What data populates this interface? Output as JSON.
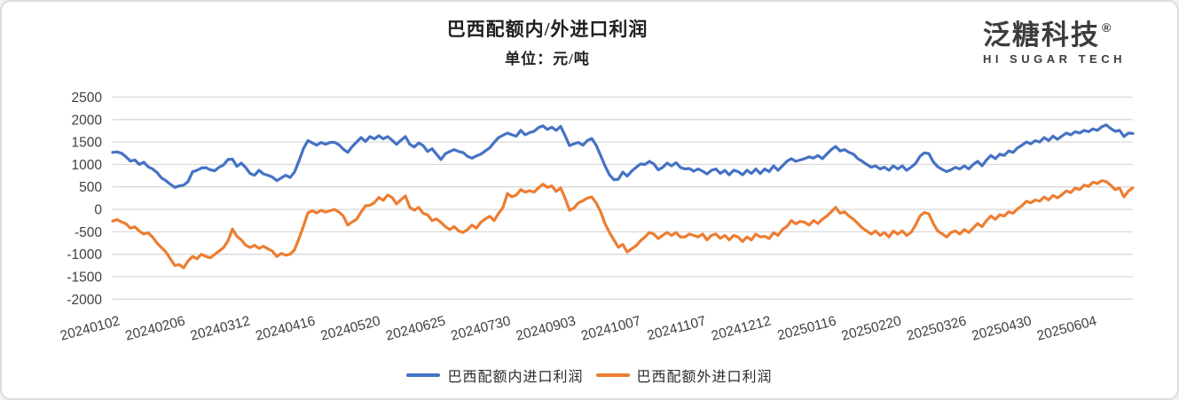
{
  "header": {
    "title": "巴西配额内/外进口利润",
    "subtitle": "单位：元/吨"
  },
  "logo": {
    "brand": "泛糖科技",
    "registered_mark": "®",
    "tagline": "HI SUGAR TECH"
  },
  "chart_data": {
    "type": "line",
    "title": "巴西配额内/外进口利润",
    "unit_label": "单位：元/吨",
    "grid": "horizontal",
    "legend_position": "bottom",
    "ylim": [
      -2000,
      2500
    ],
    "y_tick_step": 500,
    "y_tick_labels": [
      "2500",
      "2000",
      "1500",
      "1000",
      "500",
      "0",
      "-500",
      "-1000",
      "-1500",
      "-2000"
    ],
    "x_tick_labels": [
      "20240102",
      "20240206",
      "20240312",
      "20240416",
      "20240520",
      "20240625",
      "20240730",
      "20240903",
      "20241007",
      "20241107",
      "20241212",
      "20250116",
      "20250220",
      "20250326",
      "20250430",
      "20250604"
    ],
    "colors": {
      "gridline": "#D9D9D9",
      "axis_text": "#404040",
      "series_in_quota": "#4472C4",
      "series_out_quota": "#ED7D31"
    },
    "series": [
      {
        "name": "巴西配额内进口利润",
        "color": "#4472C4",
        "values": [
          1270,
          1280,
          1250,
          1170,
          1075,
          1100,
          1000,
          1050,
          950,
          900,
          820,
          700,
          640,
          560,
          490,
          520,
          540,
          620,
          835,
          870,
          920,
          930,
          880,
          860,
          940,
          990,
          1110,
          1120,
          960,
          1030,
          930,
          800,
          760,
          870,
          790,
          760,
          720,
          640,
          700,
          760,
          710,
          830,
          1080,
          1350,
          1530,
          1480,
          1430,
          1490,
          1450,
          1490,
          1495,
          1440,
          1340,
          1270,
          1400,
          1500,
          1600,
          1510,
          1620,
          1570,
          1640,
          1570,
          1620,
          1540,
          1450,
          1540,
          1620,
          1450,
          1390,
          1480,
          1420,
          1290,
          1350,
          1230,
          1110,
          1240,
          1290,
          1330,
          1290,
          1265,
          1180,
          1140,
          1190,
          1230,
          1300,
          1370,
          1490,
          1600,
          1650,
          1700,
          1660,
          1630,
          1760,
          1660,
          1710,
          1740,
          1820,
          1860,
          1780,
          1830,
          1760,
          1850,
          1640,
          1420,
          1460,
          1490,
          1430,
          1530,
          1580,
          1430,
          1200,
          970,
          770,
          660,
          670,
          830,
          740,
          850,
          935,
          1010,
          1000,
          1070,
          1010,
          880,
          935,
          1030,
          970,
          1040,
          935,
          900,
          910,
          850,
          900,
          850,
          790,
          870,
          900,
          800,
          870,
          770,
          870,
          840,
          770,
          870,
          800,
          900,
          800,
          900,
          840,
          970,
          870,
          970,
          1070,
          1130,
          1070,
          1100,
          1130,
          1170,
          1140,
          1200,
          1130,
          1230,
          1330,
          1400,
          1300,
          1330,
          1270,
          1230,
          1130,
          1070,
          1000,
          940,
          970,
          900,
          940,
          870,
          970,
          900,
          970,
          870,
          940,
          1020,
          1180,
          1260,
          1240,
          1060,
          950,
          890,
          840,
          880,
          935,
          900,
          970,
          900,
          1000,
          1070,
          970,
          1100,
          1200,
          1130,
          1230,
          1200,
          1300,
          1270,
          1370,
          1430,
          1500,
          1460,
          1530,
          1500,
          1600,
          1530,
          1630,
          1560,
          1630,
          1700,
          1660,
          1730,
          1700,
          1760,
          1730,
          1790,
          1760,
          1840,
          1880,
          1800,
          1740,
          1760,
          1620,
          1700,
          1690
        ]
      },
      {
        "name": "巴西配额外进口利润",
        "color": "#ED7D31",
        "values": [
          -260,
          -230,
          -280,
          -320,
          -420,
          -390,
          -480,
          -550,
          -520,
          -620,
          -750,
          -850,
          -950,
          -1100,
          -1250,
          -1230,
          -1300,
          -1150,
          -1050,
          -1100,
          -1000,
          -1050,
          -1080,
          -1000,
          -930,
          -850,
          -700,
          -440,
          -600,
          -680,
          -800,
          -850,
          -800,
          -870,
          -820,
          -880,
          -930,
          -1050,
          -980,
          -1020,
          -1000,
          -900,
          -650,
          -380,
          -80,
          -30,
          -80,
          -20,
          -60,
          -30,
          0,
          -60,
          -150,
          -350,
          -280,
          -220,
          -60,
          80,
          90,
          150,
          265,
          200,
          320,
          265,
          120,
          215,
          300,
          45,
          -20,
          45,
          -90,
          -120,
          -250,
          -215,
          -290,
          -385,
          -450,
          -385,
          -480,
          -515,
          -450,
          -350,
          -420,
          -285,
          -215,
          -155,
          -250,
          -90,
          45,
          350,
          280,
          320,
          440,
          385,
          415,
          385,
          480,
          560,
          490,
          520,
          400,
          475,
          250,
          -20,
          30,
          145,
          190,
          250,
          275,
          145,
          -50,
          -320,
          -515,
          -680,
          -845,
          -780,
          -950,
          -880,
          -810,
          -700,
          -615,
          -515,
          -550,
          -650,
          -580,
          -515,
          -580,
          -515,
          -615,
          -615,
          -550,
          -580,
          -615,
          -550,
          -680,
          -580,
          -550,
          -645,
          -580,
          -680,
          -580,
          -615,
          -715,
          -615,
          -680,
          -550,
          -615,
          -600,
          -650,
          -520,
          -580,
          -450,
          -380,
          -250,
          -320,
          -270,
          -285,
          -350,
          -250,
          -315,
          -220,
          -150,
          -55,
          45,
          -85,
          -55,
          -150,
          -220,
          -315,
          -415,
          -480,
          -550,
          -480,
          -580,
          -515,
          -615,
          -480,
          -550,
          -480,
          -580,
          -515,
          -350,
          -150,
          -70,
          -100,
          -315,
          -480,
          -545,
          -615,
          -515,
          -480,
          -550,
          -450,
          -515,
          -415,
          -315,
          -385,
          -250,
          -150,
          -220,
          -120,
          -150,
          -55,
          -85,
          10,
          80,
          180,
          145,
          210,
          180,
          275,
          210,
          310,
          255,
          325,
          410,
          375,
          475,
          440,
          540,
          510,
          605,
          575,
          640,
          620,
          540,
          440,
          475,
          275,
          410,
          480
        ]
      }
    ]
  }
}
